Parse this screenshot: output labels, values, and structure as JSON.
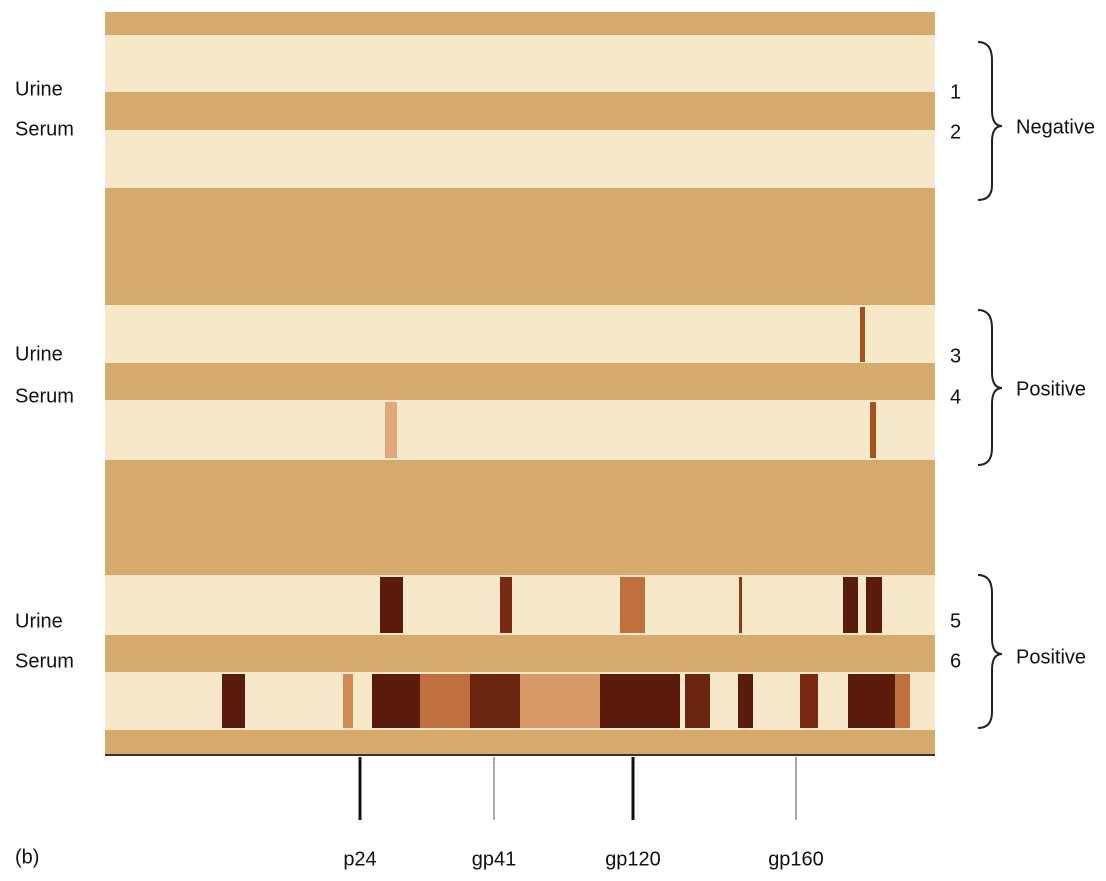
{
  "groups": [
    {
      "labels": [
        "Urine",
        "Serum"
      ],
      "lanes": [
        "1",
        "2"
      ],
      "result": "Negative"
    },
    {
      "labels": [
        "Urine",
        "Serum"
      ],
      "lanes": [
        "3",
        "4"
      ],
      "result": "Positive"
    },
    {
      "labels": [
        "Urine",
        "Serum"
      ],
      "lanes": [
        "5",
        "6"
      ],
      "result": "Positive"
    }
  ],
  "markers": [
    "p24",
    "gp41",
    "gp120",
    "gp160"
  ],
  "panel_label": "(b)"
}
